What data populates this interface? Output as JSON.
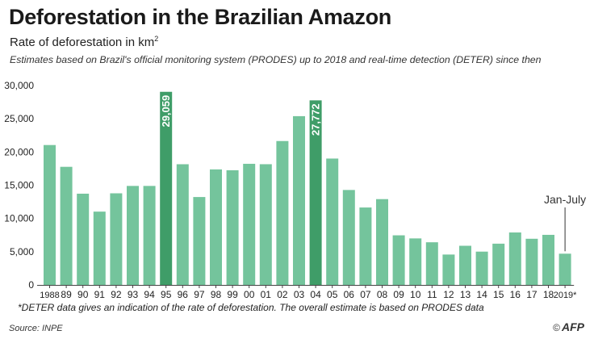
{
  "header": {
    "title": "Deforestation in the Brazilian Amazon",
    "subtitle_main": "Rate of deforestation in km",
    "subtitle_sup": "2",
    "description": "Estimates based on Brazil's official monitoring system (PRODES) up to 2018 and real-time detection (DETER) since then"
  },
  "footnote": "*DETER data gives an indication of the rate of deforestation. The overall estimate is based on PRODES data",
  "source": "Source: INPE",
  "credit": {
    "symbol": "©",
    "text": "AFP"
  },
  "colors": {
    "bar": "#74c49c",
    "highlight": "#3f9d68",
    "axis": "#444444",
    "gridline": "#d0d0d0",
    "label_text": "#ffffff"
  },
  "chart_data": {
    "type": "bar",
    "title": "Deforestation in the Brazilian Amazon",
    "ylabel": "Rate of deforestation in km2",
    "xlabel": "",
    "ylim": [
      0,
      30000
    ],
    "y_ticks": [
      0,
      5000,
      10000,
      15000,
      20000,
      25000,
      30000
    ],
    "y_tick_labels": [
      "0",
      "5,000",
      "10,000",
      "15,000",
      "20,000",
      "25,000",
      "30,000"
    ],
    "categories": [
      "1988",
      "89",
      "90",
      "91",
      "92",
      "93",
      "94",
      "95",
      "96",
      "97",
      "98",
      "99",
      "00",
      "01",
      "02",
      "03",
      "04",
      "05",
      "06",
      "07",
      "08",
      "09",
      "10",
      "11",
      "12",
      "13",
      "14",
      "15",
      "16",
      "17",
      "18",
      "2019*"
    ],
    "values": [
      21050,
      17770,
      13730,
      11030,
      13786,
      14896,
      14896,
      29059,
      18161,
      13227,
      17383,
      17259,
      18226,
      18165,
      21651,
      25396,
      27772,
      19014,
      14286,
      11651,
      12911,
      7464,
      7000,
      6418,
      4571,
      5891,
      5012,
      6207,
      7893,
      6947,
      7536,
      4700
    ],
    "highlight_labels": [
      {
        "category": "95",
        "label": "29,059"
      },
      {
        "category": "04",
        "label": "27,772"
      }
    ],
    "annotations": [
      {
        "category": "2019*",
        "text": "Jan-July"
      }
    ]
  }
}
